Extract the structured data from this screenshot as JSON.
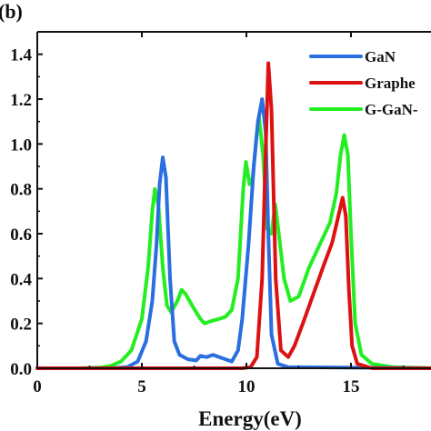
{
  "panel_label": "(b)",
  "chart_data": {
    "type": "line",
    "title": "",
    "xlabel": "Energy(eV)",
    "ylabel": "",
    "xlim": [
      0,
      19
    ],
    "ylim": [
      0,
      1.5
    ],
    "x_ticks": [
      0,
      5,
      10,
      15
    ],
    "y_ticks": [
      0.0,
      0.2,
      0.4,
      0.6,
      0.8,
      1.0,
      1.2,
      1.4
    ],
    "x_tick_labels": [
      "0",
      "5",
      "10",
      "15"
    ],
    "y_tick_labels": [
      "0.0",
      "0.2",
      "0.4",
      "0.6",
      "0.8",
      "1.0",
      "1.2",
      "1.4"
    ],
    "legend_position": "top-right",
    "grid": false,
    "series": [
      {
        "name": "G-GaN-",
        "color": "#22ee22",
        "points": [
          [
            0,
            0
          ],
          [
            2,
            0
          ],
          [
            3,
            0.003
          ],
          [
            3.5,
            0.01
          ],
          [
            4,
            0.03
          ],
          [
            4.5,
            0.08
          ],
          [
            5,
            0.22
          ],
          [
            5.3,
            0.45
          ],
          [
            5.5,
            0.7
          ],
          [
            5.62,
            0.8
          ],
          [
            5.8,
            0.72
          ],
          [
            6.0,
            0.45
          ],
          [
            6.2,
            0.28
          ],
          [
            6.4,
            0.25
          ],
          [
            6.7,
            0.3
          ],
          [
            6.9,
            0.35
          ],
          [
            7.1,
            0.33
          ],
          [
            7.4,
            0.28
          ],
          [
            7.8,
            0.22
          ],
          [
            8.0,
            0.2
          ],
          [
            8.3,
            0.21
          ],
          [
            8.7,
            0.22
          ],
          [
            9.0,
            0.23
          ],
          [
            9.3,
            0.26
          ],
          [
            9.6,
            0.4
          ],
          [
            9.85,
            0.8
          ],
          [
            9.98,
            0.92
          ],
          [
            10.15,
            0.82
          ],
          [
            10.3,
            0.85
          ],
          [
            10.5,
            1.05
          ],
          [
            10.6,
            1.12
          ],
          [
            10.8,
            0.95
          ],
          [
            11.0,
            0.62
          ],
          [
            11.2,
            0.6
          ],
          [
            11.38,
            0.73
          ],
          [
            11.55,
            0.6
          ],
          [
            11.8,
            0.4
          ],
          [
            12.1,
            0.3
          ],
          [
            12.5,
            0.32
          ],
          [
            13.0,
            0.45
          ],
          [
            13.5,
            0.55
          ],
          [
            14.0,
            0.65
          ],
          [
            14.3,
            0.78
          ],
          [
            14.5,
            0.95
          ],
          [
            14.68,
            1.04
          ],
          [
            14.85,
            0.95
          ],
          [
            15.0,
            0.6
          ],
          [
            15.2,
            0.2
          ],
          [
            15.5,
            0.06
          ],
          [
            16,
            0.02
          ],
          [
            17,
            0.005
          ],
          [
            19,
            0
          ]
        ]
      },
      {
        "name": "GaN",
        "color": "#2a6ee0",
        "points": [
          [
            0,
            0
          ],
          [
            3.5,
            0
          ],
          [
            4.3,
            0.005
          ],
          [
            4.8,
            0.03
          ],
          [
            5.2,
            0.12
          ],
          [
            5.5,
            0.3
          ],
          [
            5.7,
            0.55
          ],
          [
            5.85,
            0.82
          ],
          [
            6.0,
            0.94
          ],
          [
            6.15,
            0.85
          ],
          [
            6.35,
            0.4
          ],
          [
            6.55,
            0.12
          ],
          [
            6.8,
            0.06
          ],
          [
            7.2,
            0.04
          ],
          [
            7.6,
            0.035
          ],
          [
            7.8,
            0.055
          ],
          [
            8.1,
            0.05
          ],
          [
            8.4,
            0.06
          ],
          [
            8.7,
            0.05
          ],
          [
            9.0,
            0.04
          ],
          [
            9.3,
            0.03
          ],
          [
            9.6,
            0.08
          ],
          [
            9.8,
            0.22
          ],
          [
            10.1,
            0.55
          ],
          [
            10.35,
            0.9
          ],
          [
            10.55,
            1.1
          ],
          [
            10.75,
            1.2
          ],
          [
            10.92,
            1.05
          ],
          [
            11.05,
            0.6
          ],
          [
            11.2,
            0.15
          ],
          [
            11.5,
            0.02
          ],
          [
            12,
            0.005
          ],
          [
            19,
            0
          ]
        ]
      },
      {
        "name": "Graphe",
        "color": "#dd1111",
        "points": [
          [
            0,
            0
          ],
          [
            9.8,
            0
          ],
          [
            10.2,
            0.005
          ],
          [
            10.5,
            0.05
          ],
          [
            10.75,
            0.4
          ],
          [
            10.9,
            0.9
          ],
          [
            11.05,
            1.36
          ],
          [
            11.2,
            1.15
          ],
          [
            11.4,
            0.4
          ],
          [
            11.65,
            0.08
          ],
          [
            12.0,
            0.05
          ],
          [
            12.3,
            0.1
          ],
          [
            12.7,
            0.2
          ],
          [
            13.2,
            0.33
          ],
          [
            13.7,
            0.46
          ],
          [
            14.1,
            0.56
          ],
          [
            14.4,
            0.68
          ],
          [
            14.6,
            0.76
          ],
          [
            14.75,
            0.68
          ],
          [
            14.9,
            0.35
          ],
          [
            15.05,
            0.1
          ],
          [
            15.3,
            0.02
          ],
          [
            16,
            0
          ],
          [
            19,
            0
          ]
        ]
      }
    ],
    "legend": [
      {
        "name": "GaN",
        "color": "#2a6ee0"
      },
      {
        "name": "Graphe",
        "color": "#dd1111"
      },
      {
        "name": "G-GaN-",
        "color": "#22ee22"
      }
    ]
  }
}
